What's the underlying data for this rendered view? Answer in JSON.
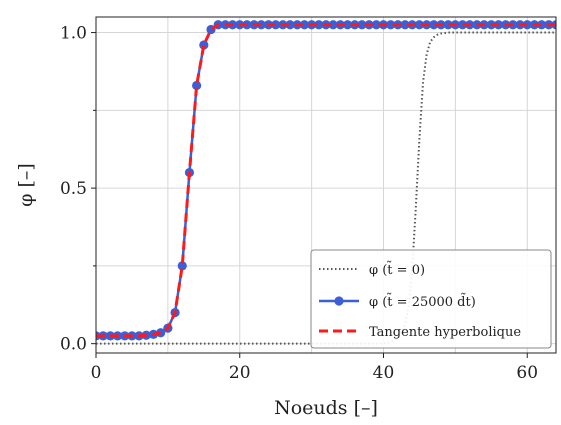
{
  "chart_data": {
    "type": "line",
    "xlabel": "Noeuds [–]",
    "ylabel": "φ [–]",
    "xlim": [
      0,
      64
    ],
    "ylim": [
      -0.03,
      1.05
    ],
    "xticks": [
      0,
      20,
      40,
      60
    ],
    "xtick_labels": [
      "0",
      "20",
      "40",
      "60"
    ],
    "yticks": [
      0.0,
      0.5,
      1.0
    ],
    "ytick_labels": [
      "0.0",
      "0.5",
      "1.0"
    ],
    "minor_yticks": [
      0.25,
      0.75
    ],
    "grid": true,
    "legend_position": "lower-right",
    "series": [
      {
        "name": "φ (t̃ = 0)",
        "style": "dotted",
        "color": "#555555",
        "x": [
          0,
          40,
          41,
          42,
          43,
          43.5,
          44,
          44.5,
          45,
          45.5,
          46,
          46.5,
          47,
          47.5,
          48,
          49,
          50,
          64
        ],
        "y": [
          0.0,
          0.0,
          0.005,
          0.02,
          0.06,
          0.12,
          0.24,
          0.44,
          0.66,
          0.84,
          0.93,
          0.97,
          0.985,
          0.993,
          0.997,
          1.0,
          1.0,
          1.0
        ]
      },
      {
        "name": "φ (t̃ = 25000 d̃t)",
        "style": "solid-markers",
        "color": "#3b5fd9",
        "x": [
          0,
          1,
          2,
          3,
          4,
          5,
          6,
          7,
          8,
          9,
          10,
          11,
          12,
          13,
          14,
          15,
          16,
          17,
          18,
          19,
          20,
          21,
          22,
          23,
          24,
          25,
          26,
          27,
          28,
          29,
          30,
          31,
          32,
          33,
          34,
          35,
          36,
          37,
          38,
          39,
          40,
          41,
          42,
          43,
          44,
          45,
          46,
          47,
          48,
          49,
          50,
          51,
          52,
          53,
          54,
          55,
          56,
          57,
          58,
          59,
          60,
          61,
          62,
          63,
          64
        ],
        "y": [
          0.025,
          0.025,
          0.025,
          0.025,
          0.025,
          0.025,
          0.025,
          0.027,
          0.03,
          0.035,
          0.05,
          0.1,
          0.25,
          0.55,
          0.83,
          0.96,
          1.01,
          1.025,
          1.025,
          1.025,
          1.025,
          1.025,
          1.025,
          1.025,
          1.025,
          1.025,
          1.025,
          1.025,
          1.025,
          1.025,
          1.025,
          1.025,
          1.025,
          1.025,
          1.025,
          1.025,
          1.025,
          1.025,
          1.025,
          1.025,
          1.025,
          1.025,
          1.025,
          1.025,
          1.025,
          1.025,
          1.025,
          1.025,
          1.025,
          1.025,
          1.025,
          1.025,
          1.025,
          1.025,
          1.025,
          1.025,
          1.025,
          1.025,
          1.025,
          1.025,
          1.025,
          1.025,
          1.025,
          1.025,
          1.025
        ]
      },
      {
        "name": "Tangente hyperbolique",
        "style": "dashed",
        "color": "#ff1a1a",
        "x": [
          0,
          1,
          2,
          3,
          4,
          5,
          6,
          7,
          8,
          9,
          10,
          11,
          12,
          13,
          14,
          15,
          16,
          17,
          18,
          19,
          20,
          21,
          22,
          23,
          24,
          25,
          26,
          27,
          28,
          29,
          30,
          31,
          32,
          33,
          34,
          35,
          36,
          37,
          38,
          39,
          40,
          41,
          42,
          43,
          44,
          45,
          46,
          47,
          48,
          49,
          50,
          51,
          52,
          53,
          54,
          55,
          56,
          57,
          58,
          59,
          60,
          61,
          62,
          63,
          64
        ],
        "y": [
          0.025,
          0.025,
          0.025,
          0.025,
          0.025,
          0.025,
          0.025,
          0.027,
          0.03,
          0.035,
          0.05,
          0.1,
          0.25,
          0.55,
          0.83,
          0.96,
          1.01,
          1.025,
          1.025,
          1.025,
          1.025,
          1.025,
          1.025,
          1.025,
          1.025,
          1.025,
          1.025,
          1.025,
          1.025,
          1.025,
          1.025,
          1.025,
          1.025,
          1.025,
          1.025,
          1.025,
          1.025,
          1.025,
          1.025,
          1.025,
          1.025,
          1.025,
          1.025,
          1.025,
          1.025,
          1.025,
          1.025,
          1.025,
          1.025,
          1.025,
          1.025,
          1.025,
          1.025,
          1.025,
          1.025,
          1.025,
          1.025,
          1.025,
          1.025,
          1.025,
          1.025,
          1.025,
          1.025,
          1.025,
          1.025
        ]
      }
    ]
  }
}
